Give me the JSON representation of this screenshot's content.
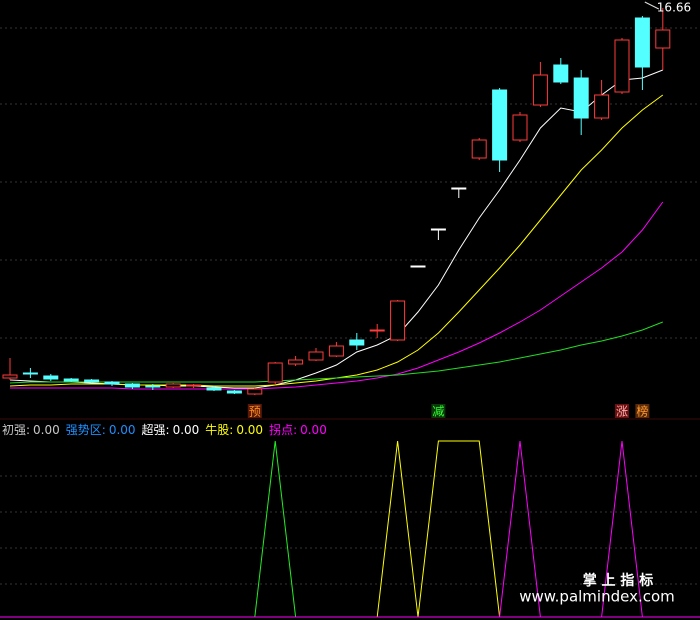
{
  "chart_data": [
    {
      "type": "candlestick",
      "up_color": "#ff3b3b",
      "down_color": "#54ffff",
      "flat_color": "#ffffff",
      "ylim": [
        4.9,
        16.9
      ],
      "candles": [
        {
          "o": 5.56,
          "h": 6.16,
          "l": 5.5,
          "c": 5.65
        },
        {
          "o": 5.71,
          "h": 5.86,
          "l": 5.56,
          "c": 5.7
        },
        {
          "o": 5.62,
          "h": 5.68,
          "l": 5.47,
          "c": 5.53
        },
        {
          "o": 5.53,
          "h": 5.56,
          "l": 5.44,
          "c": 5.47
        },
        {
          "o": 5.5,
          "h": 5.53,
          "l": 5.41,
          "c": 5.44
        },
        {
          "o": 5.44,
          "h": 5.47,
          "l": 5.32,
          "c": 5.38
        },
        {
          "o": 5.38,
          "h": 5.41,
          "l": 5.23,
          "c": 5.29
        },
        {
          "o": 5.32,
          "h": 5.38,
          "l": 5.2,
          "c": 5.29
        },
        {
          "o": 5.29,
          "h": 5.41,
          "l": 5.26,
          "c": 5.38
        },
        {
          "o": 5.32,
          "h": 5.38,
          "l": 5.26,
          "c": 5.35
        },
        {
          "o": 5.26,
          "h": 5.32,
          "l": 5.17,
          "c": 5.2
        },
        {
          "o": 5.17,
          "h": 5.2,
          "l": 5.08,
          "c": 5.11
        },
        {
          "o": 5.08,
          "h": 5.26,
          "l": 5.05,
          "c": 5.23
        },
        {
          "o": 5.44,
          "h": 6.04,
          "l": 5.38,
          "c": 6.01
        },
        {
          "o": 5.98,
          "h": 6.22,
          "l": 5.92,
          "c": 6.1
        },
        {
          "o": 6.1,
          "h": 6.46,
          "l": 6.07,
          "c": 6.34
        },
        {
          "o": 6.22,
          "h": 6.64,
          "l": 6.19,
          "c": 6.52
        },
        {
          "o": 6.7,
          "h": 6.91,
          "l": 6.4,
          "c": 6.55
        },
        {
          "o": 6.97,
          "h": 7.18,
          "l": 6.76,
          "c": 7.0
        },
        {
          "o": 6.7,
          "h": 7.9,
          "l": 6.67,
          "c": 7.87
        },
        {
          "o": 8.92,
          "h": 8.92,
          "l": 8.92,
          "c": 8.92
        },
        {
          "o": 10.03,
          "h": 10.03,
          "l": 9.7,
          "c": 10.03
        },
        {
          "o": 11.26,
          "h": 11.26,
          "l": 10.96,
          "c": 11.26
        },
        {
          "o": 12.16,
          "h": 12.76,
          "l": 12.1,
          "c": 12.7
        },
        {
          "o": 14.2,
          "h": 14.26,
          "l": 11.74,
          "c": 12.1
        },
        {
          "o": 12.7,
          "h": 13.54,
          "l": 12.64,
          "c": 13.45
        },
        {
          "o": 13.75,
          "h": 15.04,
          "l": 13.69,
          "c": 14.65
        },
        {
          "o": 14.95,
          "h": 15.16,
          "l": 14.38,
          "c": 14.44
        },
        {
          "o": 14.56,
          "h": 14.8,
          "l": 12.85,
          "c": 13.36
        },
        {
          "o": 13.36,
          "h": 14.5,
          "l": 13.3,
          "c": 14.05
        },
        {
          "o": 14.14,
          "h": 15.76,
          "l": 14.08,
          "c": 15.7
        },
        {
          "o": 16.36,
          "h": 16.42,
          "l": 14.2,
          "c": 14.89
        },
        {
          "o": 15.46,
          "h": 16.66,
          "l": 14.8,
          "c": 16.0
        }
      ],
      "series": [
        {
          "color": "#ffffff",
          "values": [
            5.5,
            5.47,
            5.44,
            5.44,
            5.41,
            5.38,
            5.35,
            5.35,
            5.32,
            5.32,
            5.29,
            5.26,
            5.26,
            5.35,
            5.5,
            5.71,
            5.95,
            6.34,
            6.55,
            6.85,
            7.54,
            8.35,
            9.4,
            10.36,
            11.2,
            12.1,
            13.06,
            13.66,
            13.54,
            14.05,
            14.5,
            14.56,
            14.8
          ]
        },
        {
          "color": "#ffff00",
          "values": [
            5.32,
            5.35,
            5.35,
            5.38,
            5.38,
            5.38,
            5.35,
            5.35,
            5.35,
            5.35,
            5.32,
            5.32,
            5.32,
            5.35,
            5.41,
            5.47,
            5.56,
            5.65,
            5.8,
            6.04,
            6.4,
            6.91,
            7.54,
            8.2,
            8.86,
            9.55,
            10.3,
            11.05,
            11.8,
            12.4,
            13.06,
            13.6,
            14.05
          ]
        },
        {
          "color": "#ff00ff",
          "values": [
            5.26,
            5.26,
            5.26,
            5.26,
            5.26,
            5.26,
            5.23,
            5.23,
            5.23,
            5.23,
            5.23,
            5.23,
            5.23,
            5.26,
            5.29,
            5.35,
            5.41,
            5.47,
            5.56,
            5.68,
            5.86,
            6.1,
            6.34,
            6.61,
            6.91,
            7.24,
            7.6,
            8.02,
            8.44,
            8.86,
            9.34,
            10.0,
            10.84
          ]
        },
        {
          "color": "#22dd22",
          "values": [
            5.41,
            5.44,
            5.44,
            5.44,
            5.44,
            5.44,
            5.44,
            5.44,
            5.44,
            5.44,
            5.44,
            5.44,
            5.44,
            5.47,
            5.5,
            5.53,
            5.56,
            5.59,
            5.62,
            5.65,
            5.71,
            5.77,
            5.86,
            5.95,
            6.04,
            6.16,
            6.28,
            6.4,
            6.55,
            6.67,
            6.82,
            7.0,
            7.24
          ]
        }
      ],
      "signals": [
        {
          "index": 12,
          "text": "预",
          "color": "#ff8c1a",
          "bg": "#5a1a0a"
        },
        {
          "index": 21,
          "text": "减",
          "color": "#33ff33",
          "bg": "#0a3a0a"
        },
        {
          "index": 30,
          "text": "涨",
          "color": "#ffb0b0",
          "bg": "#6a1010"
        },
        {
          "index": 31,
          "text": "榜",
          "color": "#ff9a30",
          "bg": "#5a2a0a"
        }
      ]
    },
    {
      "type": "line",
      "ylim": [
        0,
        1
      ],
      "legend": [
        {
          "name": "初强:",
          "value": "0.00",
          "color": "#c8c8c8"
        },
        {
          "name": "强势区:",
          "value": "0.00",
          "color": "#1e90ff"
        },
        {
          "name": "超强:",
          "value": "0.00",
          "color": "#ffffff"
        },
        {
          "name": "牛股:",
          "value": "0.00",
          "color": "#ffff00"
        },
        {
          "name": "拐点:",
          "value": "0.00",
          "color": "#ff00ff"
        }
      ],
      "series": [
        {
          "color": "#22ee22",
          "values": [
            0,
            0,
            0,
            0,
            0,
            0,
            0,
            0,
            0,
            0,
            0,
            0,
            0,
            1,
            0,
            0,
            0,
            0,
            0,
            0,
            0,
            0,
            0,
            0,
            0,
            0,
            0,
            0,
            0,
            0,
            0,
            0,
            0
          ]
        },
        {
          "color": "#ffff00",
          "values": [
            0,
            0,
            0,
            0,
            0,
            0,
            0,
            0,
            0,
            0,
            0,
            0,
            0,
            0,
            0,
            0,
            0,
            0,
            0,
            1,
            0,
            1,
            1,
            1,
            0,
            0,
            0,
            0,
            0,
            0,
            0,
            0,
            0
          ]
        },
        {
          "color": "#ff00ff",
          "values": [
            0,
            0,
            0,
            0,
            0,
            0,
            0,
            0,
            0,
            0,
            0,
            0,
            0,
            0,
            0,
            0,
            0,
            0,
            0,
            0,
            0,
            0,
            0,
            0,
            0,
            1,
            0,
            0,
            0,
            0,
            1,
            0,
            0
          ]
        }
      ]
    }
  ],
  "watermark": {
    "title": "掌 上 指 标",
    "url": "www.palmindex.com"
  }
}
